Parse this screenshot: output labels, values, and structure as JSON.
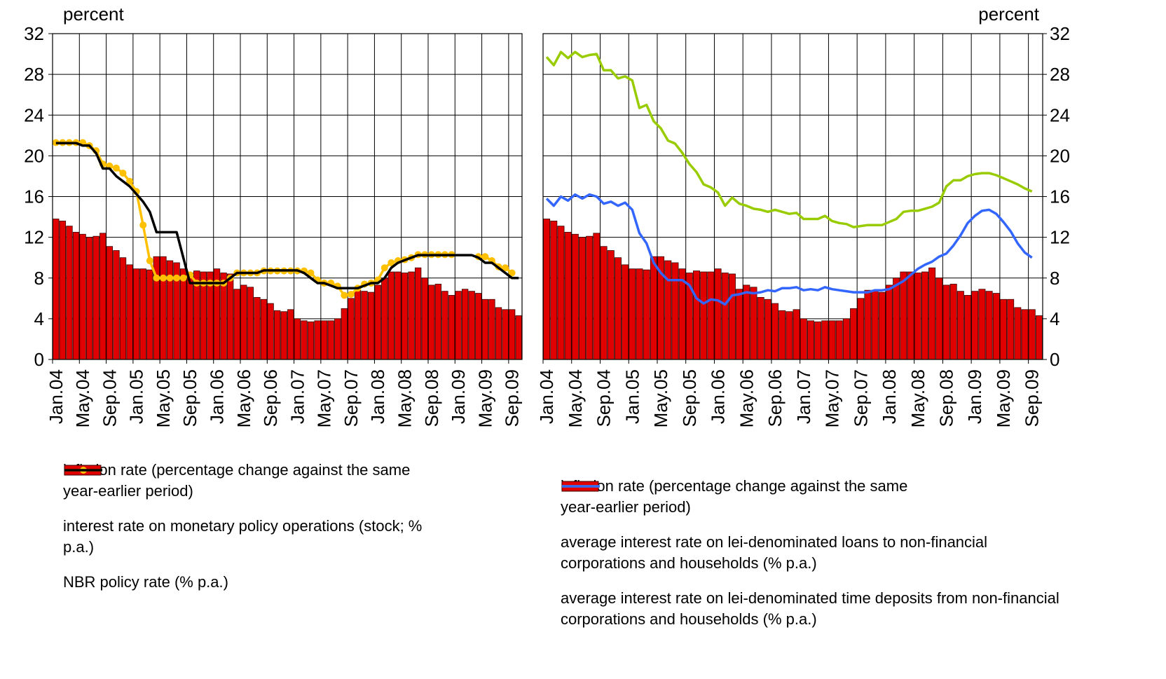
{
  "chart_data": [
    {
      "type": "combo",
      "ylabel": "percent",
      "yaxis_side": "left",
      "grid": true,
      "ylim": [
        0,
        32
      ],
      "yticks": [
        0,
        4,
        8,
        12,
        16,
        20,
        24,
        28,
        32
      ],
      "categories": [
        "Jan.04",
        null,
        null,
        null,
        "May.04",
        null,
        null,
        null,
        "Sep.04",
        null,
        null,
        null,
        "Jan.05",
        null,
        null,
        null,
        "May.05",
        null,
        null,
        null,
        "Sep.05",
        null,
        null,
        null,
        "Jan.06",
        null,
        null,
        null,
        "May.06",
        null,
        null,
        null,
        "Sep.06",
        null,
        null,
        null,
        "Jan.07",
        null,
        null,
        null,
        "May.07",
        null,
        null,
        null,
        "Sep.07",
        null,
        null,
        null,
        "Jan.08",
        null,
        null,
        null,
        "May.08",
        null,
        null,
        null,
        "Sep.08",
        null,
        null,
        null,
        "Jan.09",
        null,
        null,
        null,
        "May.09",
        null,
        null,
        null,
        "Sep.09",
        null
      ],
      "series": [
        {
          "name": "inflation rate (percentage change against the same year-earlier period)",
          "type": "bar",
          "color": "#e00000",
          "values": [
            13.8,
            13.6,
            13.1,
            12.5,
            12.3,
            12.0,
            12.1,
            12.4,
            11.1,
            10.7,
            10.0,
            9.3,
            8.9,
            8.9,
            8.8,
            10.1,
            10.1,
            9.7,
            9.5,
            8.9,
            8.5,
            8.7,
            8.6,
            8.6,
            8.9,
            8.5,
            8.4,
            6.9,
            7.3,
            7.1,
            6.1,
            5.9,
            5.5,
            4.8,
            4.7,
            4.9,
            4.0,
            3.8,
            3.7,
            3.8,
            3.8,
            3.8,
            4.0,
            5.0,
            6.0,
            6.8,
            6.7,
            6.6,
            7.3,
            8.0,
            8.6,
            8.6,
            8.5,
            8.6,
            9.0,
            8.0,
            7.3,
            7.4,
            6.7,
            6.3,
            6.7,
            6.9,
            6.7,
            6.5,
            5.9,
            5.9,
            5.1,
            4.9,
            4.9,
            4.3
          ]
        },
        {
          "name": "interest rate on monetary policy operations (stock; % p.a.)",
          "type": "line",
          "color": "#ffc000",
          "marker": true,
          "values": [
            21.3,
            21.3,
            21.3,
            21.3,
            21.3,
            21.0,
            20.5,
            19.2,
            19.0,
            18.8,
            18.3,
            17.5,
            16.5,
            13.2,
            9.7,
            8.0,
            8.0,
            8.0,
            8.0,
            8.0,
            8.3,
            7.5,
            7.5,
            7.5,
            7.5,
            7.5,
            8.0,
            8.5,
            8.5,
            8.5,
            8.5,
            8.7,
            8.7,
            8.7,
            8.7,
            8.7,
            8.7,
            8.7,
            8.5,
            7.8,
            7.5,
            7.5,
            7.2,
            6.3,
            6.4,
            7.0,
            7.4,
            7.5,
            7.8,
            9.0,
            9.5,
            9.7,
            9.8,
            10.0,
            10.3,
            10.3,
            10.3,
            10.3,
            10.3,
            10.3,
            null,
            null,
            null,
            10.1,
            10.1,
            9.7,
            9.1,
            9.0,
            8.5,
            null
          ]
        },
        {
          "name": "NBR policy rate (% p.a.)",
          "type": "line",
          "color": "#000000",
          "marker": false,
          "values": [
            21.25,
            21.25,
            21.25,
            21.25,
            21.0,
            21.0,
            20.25,
            18.75,
            18.75,
            18.0,
            17.5,
            17.0,
            16.25,
            15.5,
            14.5,
            12.5,
            12.5,
            12.5,
            12.5,
            10.0,
            7.5,
            7.5,
            7.5,
            7.5,
            7.5,
            7.5,
            8.0,
            8.5,
            8.5,
            8.5,
            8.5,
            8.75,
            8.75,
            8.75,
            8.75,
            8.75,
            8.75,
            8.5,
            8.0,
            7.5,
            7.5,
            7.25,
            7.0,
            7.0,
            7.0,
            7.0,
            7.25,
            7.5,
            7.5,
            8.0,
            9.0,
            9.5,
            9.75,
            10.0,
            10.25,
            10.25,
            10.25,
            10.25,
            10.25,
            10.25,
            10.25,
            10.25,
            10.25,
            10.0,
            9.5,
            9.5,
            9.0,
            8.5,
            8.0,
            8.0
          ]
        }
      ]
    },
    {
      "type": "combo",
      "ylabel": "percent",
      "yaxis_side": "right",
      "grid": true,
      "ylim": [
        0,
        32
      ],
      "yticks": [
        0,
        4,
        8,
        12,
        16,
        20,
        24,
        28,
        32
      ],
      "categories": [
        "Jan.04",
        null,
        null,
        null,
        "May.04",
        null,
        null,
        null,
        "Sep.04",
        null,
        null,
        null,
        "Jan.05",
        null,
        null,
        null,
        "May.05",
        null,
        null,
        null,
        "Sep.05",
        null,
        null,
        null,
        "Jan.06",
        null,
        null,
        null,
        "May.06",
        null,
        null,
        null,
        "Sep.06",
        null,
        null,
        null,
        "Jan.07",
        null,
        null,
        null,
        "May.07",
        null,
        null,
        null,
        "Sep.07",
        null,
        null,
        null,
        "Jan.08",
        null,
        null,
        null,
        "May.08",
        null,
        null,
        null,
        "Sep.08",
        null,
        null,
        null,
        "Jan.09",
        null,
        null,
        null,
        "May.09",
        null,
        null,
        null,
        "Sep.09",
        null
      ],
      "series": [
        {
          "name": "inflation rate (percentage change against the same year-earlier period)",
          "type": "bar",
          "color": "#e00000",
          "values": [
            13.8,
            13.6,
            13.1,
            12.5,
            12.3,
            12.0,
            12.1,
            12.4,
            11.1,
            10.7,
            10.0,
            9.3,
            8.9,
            8.9,
            8.8,
            10.1,
            10.1,
            9.7,
            9.5,
            8.9,
            8.5,
            8.7,
            8.6,
            8.6,
            8.9,
            8.5,
            8.4,
            6.9,
            7.3,
            7.1,
            6.1,
            5.9,
            5.5,
            4.8,
            4.7,
            4.9,
            4.0,
            3.8,
            3.7,
            3.8,
            3.8,
            3.8,
            4.0,
            5.0,
            6.0,
            6.8,
            6.7,
            6.6,
            7.3,
            8.0,
            8.6,
            8.6,
            8.5,
            8.6,
            9.0,
            8.0,
            7.3,
            7.4,
            6.7,
            6.3,
            6.7,
            6.9,
            6.7,
            6.5,
            5.9,
            5.9,
            5.1,
            4.9,
            4.9,
            4.3
          ]
        },
        {
          "name": "average interest rate on lei-denominated loans to non-financial corporations and households (% p.a.)",
          "type": "line",
          "color": "#99cc00",
          "marker": false,
          "values": [
            29.7,
            28.9,
            30.2,
            29.6,
            30.2,
            29.7,
            29.9,
            30.0,
            28.4,
            28.4,
            27.6,
            27.8,
            27.4,
            24.7,
            25.0,
            23.4,
            22.7,
            21.5,
            21.2,
            20.3,
            19.2,
            18.4,
            17.2,
            16.9,
            16.4,
            15.1,
            15.9,
            15.3,
            15.1,
            14.8,
            14.7,
            14.5,
            14.7,
            14.5,
            14.3,
            14.4,
            13.8,
            13.8,
            13.8,
            14.1,
            13.6,
            13.4,
            13.3,
            13.0,
            13.1,
            13.2,
            13.2,
            13.2,
            13.5,
            13.8,
            14.5,
            14.6,
            14.6,
            14.8,
            15.0,
            15.4,
            17.0,
            17.6,
            17.6,
            18.0,
            18.2,
            18.3,
            18.3,
            18.1,
            17.8,
            17.5,
            17.2,
            16.8,
            16.5,
            null
          ]
        },
        {
          "name": "average interest rate on lei-denominated time deposits from non-financial corporations and households (% p.a.)",
          "type": "line",
          "color": "#3366ff",
          "marker": false,
          "values": [
            15.8,
            15.1,
            16.0,
            15.6,
            16.2,
            15.8,
            16.2,
            16.0,
            15.3,
            15.5,
            15.1,
            15.4,
            14.7,
            12.4,
            11.4,
            9.5,
            8.5,
            7.8,
            7.8,
            7.8,
            7.3,
            6.0,
            5.5,
            5.9,
            5.8,
            5.4,
            6.3,
            6.4,
            6.6,
            6.5,
            6.6,
            6.8,
            6.7,
            7.0,
            7.0,
            7.1,
            6.8,
            6.9,
            6.8,
            7.1,
            6.9,
            6.8,
            6.7,
            6.6,
            6.6,
            6.6,
            6.8,
            6.8,
            6.9,
            7.3,
            7.7,
            8.3,
            8.9,
            9.3,
            9.6,
            10.1,
            10.4,
            11.2,
            12.2,
            13.4,
            14.1,
            14.6,
            14.7,
            14.3,
            13.5,
            12.6,
            11.4,
            10.5,
            10.0,
            null
          ]
        }
      ]
    }
  ]
}
